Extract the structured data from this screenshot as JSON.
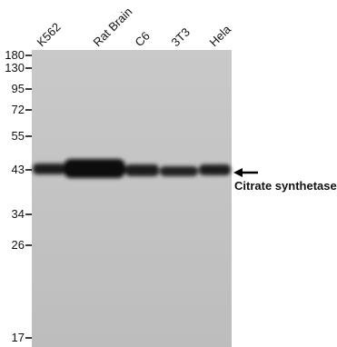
{
  "lanes": [
    "K562",
    "Rat Brain",
    "C6",
    "3T3",
    "Hela"
  ],
  "markers": [
    "180",
    "130",
    "95",
    "72",
    "55",
    "43",
    "34",
    "26",
    "17"
  ],
  "annotation": "Citrate synthetase"
}
